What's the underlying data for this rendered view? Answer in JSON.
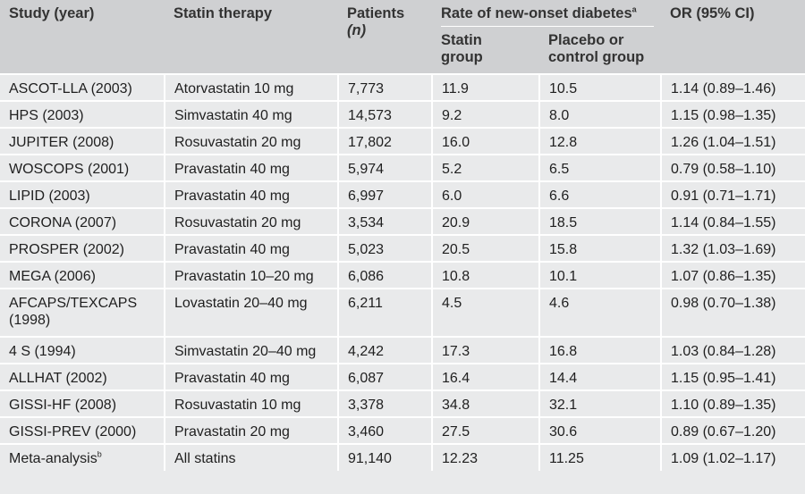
{
  "header": {
    "study": "Study (year)",
    "therapy": "Statin therapy",
    "patients_line1": "Patients",
    "patients_line2": "(n)",
    "rate": "Rate of new-onset diabetes",
    "rate_sup": "a",
    "statin_group": "Statin group",
    "placebo_group": "Placebo or control group",
    "or": "OR (95% CI)"
  },
  "rows": [
    {
      "study": "ASCOT-LLA (2003)",
      "study_sup": "",
      "therapy": "Atorvastatin 10 mg",
      "patients": "7,773",
      "statin": "11.9",
      "placebo": "10.5",
      "or": "1.14 (0.89–1.46)"
    },
    {
      "study": "HPS (2003)",
      "study_sup": "",
      "therapy": "Simvastatin 40 mg",
      "patients": "14,573",
      "statin": "9.2",
      "placebo": "8.0",
      "or": "1.15 (0.98–1.35)"
    },
    {
      "study": "JUPITER (2008)",
      "study_sup": "",
      "therapy": "Rosuvastatin 20 mg",
      "patients": "17,802",
      "statin": "16.0",
      "placebo": "12.8",
      "or": "1.26 (1.04–1.51)"
    },
    {
      "study": "WOSCOPS (2001)",
      "study_sup": "",
      "therapy": "Pravastatin 40 mg",
      "patients": "5,974",
      "statin": "5.2",
      "placebo": "6.5",
      "or": "0.79 (0.58–1.10)"
    },
    {
      "study": "LIPID (2003)",
      "study_sup": "",
      "therapy": "Pravastatin 40 mg",
      "patients": "6,997",
      "statin": "6.0",
      "placebo": "6.6",
      "or": "0.91 (0.71–1.71)"
    },
    {
      "study": "CORONA (2007)",
      "study_sup": "",
      "therapy": "Rosuvastatin 20 mg",
      "patients": "3,534",
      "statin": "20.9",
      "placebo": "18.5",
      "or": "1.14 (0.84–1.55)"
    },
    {
      "study": "PROSPER (2002)",
      "study_sup": "",
      "therapy": "Pravastatin 40 mg",
      "patients": "5,023",
      "statin": "20.5",
      "placebo": "15.8",
      "or": "1.32 (1.03–1.69)"
    },
    {
      "study": "MEGA (2006)",
      "study_sup": "",
      "therapy": "Pravastatin 10–20 mg",
      "patients": "6,086",
      "statin": "10.8",
      "placebo": "10.1",
      "or": "1.07 (0.86–1.35)"
    },
    {
      "study": "AFCAPS/TEXCAPS (1998)",
      "study_sup": "",
      "therapy": "Lovastatin 20–40 mg",
      "patients": "6,211",
      "statin": "4.5",
      "placebo": "4.6",
      "or": "0.98 (0.70–1.38)"
    },
    {
      "study": "4 S (1994)",
      "study_sup": "",
      "therapy": "Simvastatin 20–40 mg",
      "patients": "4,242",
      "statin": "17.3",
      "placebo": "16.8",
      "or": "1.03 (0.84–1.28)"
    },
    {
      "study": "ALLHAT (2002)",
      "study_sup": "",
      "therapy": "Pravastatin 40 mg",
      "patients": "6,087",
      "statin": "16.4",
      "placebo": "14.4",
      "or": "1.15 (0.95–1.41)"
    },
    {
      "study": "GISSI-HF (2008)",
      "study_sup": "",
      "therapy": "Rosuvastatin 10 mg",
      "patients": "3,378",
      "statin": "34.8",
      "placebo": "32.1",
      "or": "1.10 (0.89–1.35)"
    },
    {
      "study": "GISSI-PREV (2000)",
      "study_sup": "",
      "therapy": "Pravastatin 20 mg",
      "patients": "3,460",
      "statin": "27.5",
      "placebo": "30.6",
      "or": "0.89 (0.67–1.20)"
    },
    {
      "study": "Meta-analysis",
      "study_sup": "b",
      "therapy": "All statins",
      "patients": "91,140",
      "statin": "12.23",
      "placebo": "11.25",
      "or": "1.09 (1.02–1.17)"
    }
  ]
}
